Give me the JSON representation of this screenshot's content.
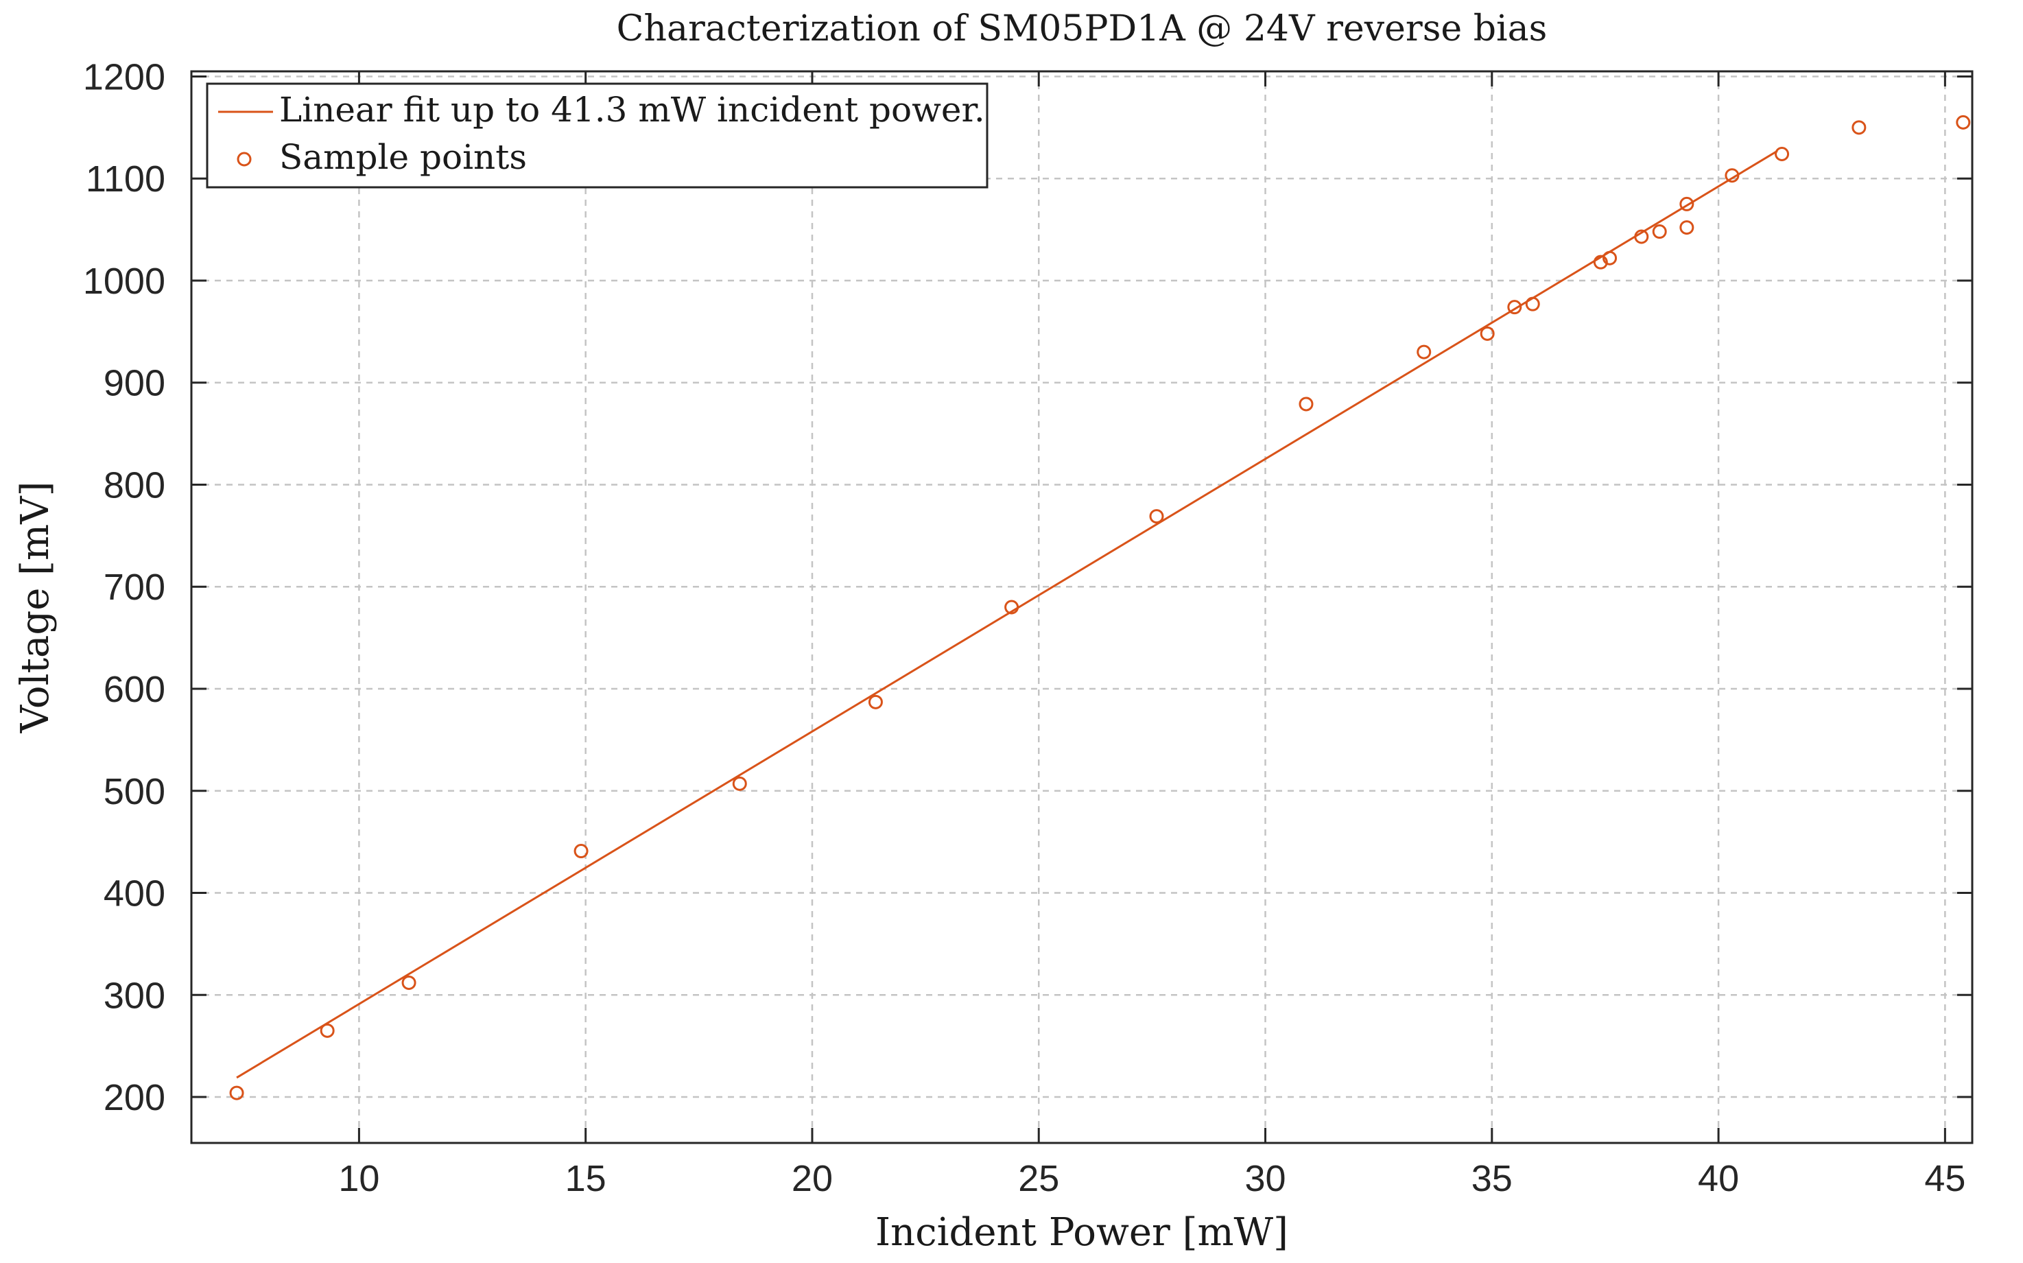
{
  "chart_data": {
    "type": "scatter",
    "title": "Characterization of SM05PD1A @ 24V reverse bias",
    "xlabel": "Incident Power [mW]",
    "ylabel": "Voltage [mV]",
    "xlim": [
      6.3,
      45.6
    ],
    "ylim": [
      155,
      1205
    ],
    "xticks": [
      10,
      15,
      20,
      25,
      30,
      35,
      40,
      45
    ],
    "yticks": [
      200,
      300,
      400,
      500,
      600,
      700,
      800,
      900,
      1000,
      1100,
      1200
    ],
    "grid": true,
    "legend_position": "top-left",
    "color": "#d95319",
    "series": [
      {
        "name": "Linear fit up to 41.3 mW incident power.",
        "type": "line",
        "x": [
          7.3,
          41.3
        ],
        "y": [
          219,
          1127
        ]
      },
      {
        "name": "Sample points",
        "type": "scatter",
        "x": [
          7.3,
          9.3,
          11.1,
          14.9,
          18.4,
          21.4,
          24.4,
          27.6,
          30.9,
          33.5,
          34.9,
          35.5,
          35.9,
          37.4,
          37.6,
          38.3,
          38.7,
          39.3,
          39.3,
          40.3,
          41.4,
          43.1,
          45.4
        ],
        "y": [
          204,
          265,
          312,
          441,
          507,
          587,
          680,
          769,
          879,
          930,
          948,
          974,
          977,
          1018,
          1022,
          1043,
          1048,
          1052,
          1075,
          1103,
          1124,
          1150,
          1155
        ]
      }
    ]
  }
}
